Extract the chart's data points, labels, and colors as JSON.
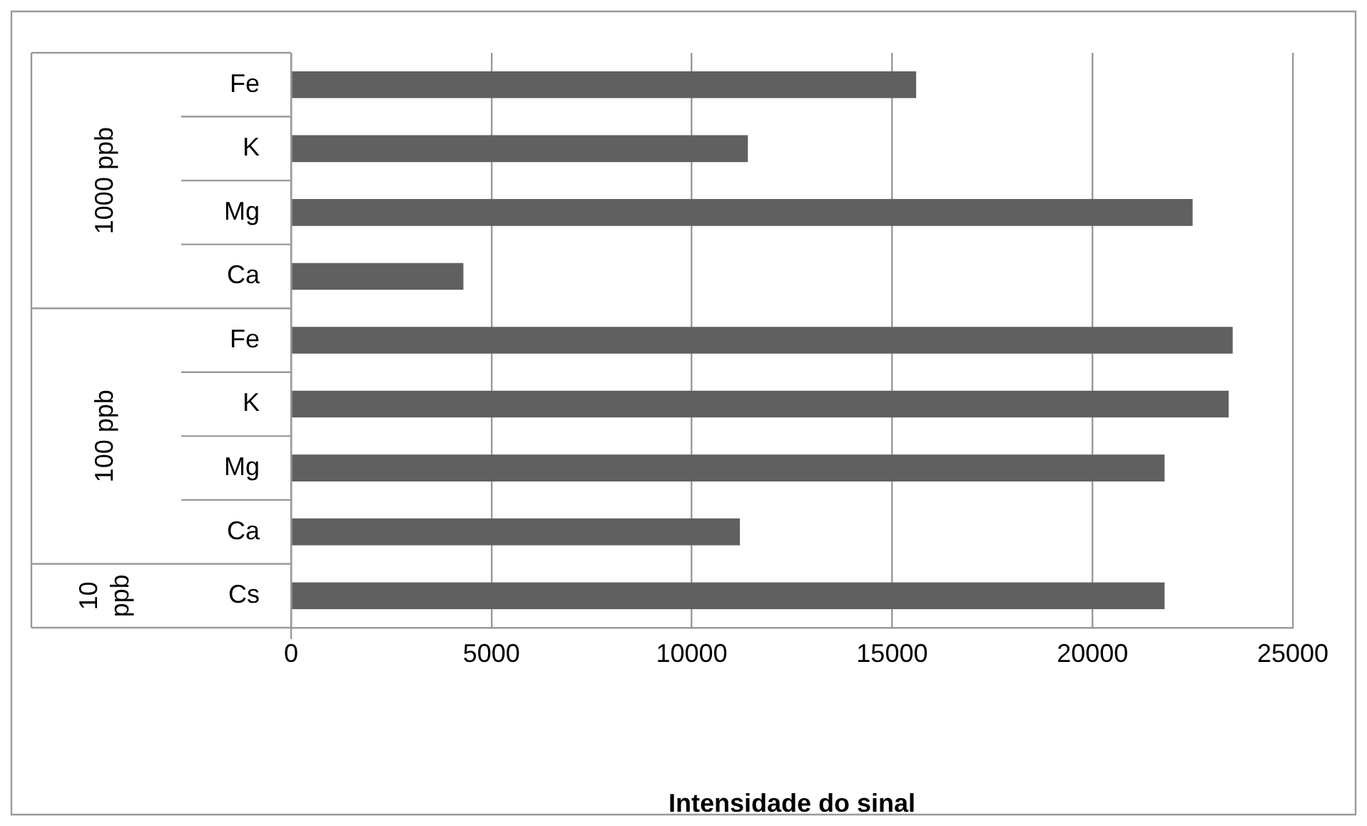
{
  "chart_data": {
    "type": "bar",
    "orientation": "horizontal",
    "xlabel": "Intensidade do sinal",
    "categories": [
      "Fe",
      "K",
      "Mg",
      "Ca",
      "Fe",
      "K",
      "Mg",
      "Ca",
      "Cs"
    ],
    "values": [
      15600,
      11400,
      22500,
      4300,
      23500,
      23400,
      21800,
      11200,
      21800
    ],
    "color": "#606060",
    "xlim": [
      0,
      25000
    ],
    "xticks": [
      0,
      5000,
      10000,
      15000,
      20000,
      25000
    ],
    "grid": "x",
    "annotations": [
      "1000 ppb",
      "100 ppb",
      "10 ppb"
    ]
  }
}
